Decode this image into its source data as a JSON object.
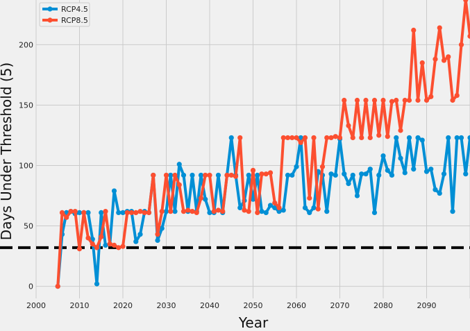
{
  "chart_data": {
    "type": "line",
    "title": "",
    "xlabel": "Year",
    "ylabel": "Days Under Threshold (5)",
    "xlim": [
      2000,
      2100
    ],
    "ylim": [
      -10,
      237
    ],
    "x_ticks": [
      2000,
      2010,
      2020,
      2030,
      2040,
      2050,
      2060,
      2070,
      2080,
      2090
    ],
    "y_ticks": [
      0,
      50,
      100,
      150,
      200
    ],
    "grid": true,
    "legend_position": "top-left",
    "threshold_line": 32,
    "colors": {
      "RCP4.5": "#008fd5",
      "RCP8.5": "#fc4f30",
      "threshold": "#000000"
    },
    "x": [
      2005,
      2006,
      2007,
      2008,
      2009,
      2010,
      2011,
      2012,
      2013,
      2014,
      2015,
      2016,
      2017,
      2018,
      2019,
      2020,
      2021,
      2022,
      2023,
      2024,
      2025,
      2026,
      2027,
      2028,
      2029,
      2030,
      2031,
      2032,
      2033,
      2034,
      2035,
      2036,
      2037,
      2038,
      2039,
      2040,
      2041,
      2042,
      2043,
      2044,
      2045,
      2046,
      2047,
      2048,
      2049,
      2050,
      2051,
      2052,
      2053,
      2054,
      2055,
      2056,
      2057,
      2058,
      2059,
      2060,
      2061,
      2062,
      2063,
      2064,
      2065,
      2066,
      2067,
      2068,
      2069,
      2070,
      2071,
      2072,
      2073,
      2074,
      2075,
      2076,
      2077,
      2078,
      2079,
      2080,
      2081,
      2082,
      2083,
      2084,
      2085,
      2086,
      2087,
      2088,
      2089,
      2090,
      2091,
      2092,
      2093,
      2094,
      2095,
      2096,
      2097,
      2098,
      2099,
      2100
    ],
    "series": [
      {
        "name": "RCP4.5",
        "values": [
          0,
          43,
          61,
          62,
          60,
          61,
          61,
          61,
          39,
          2,
          61,
          34,
          35,
          79,
          61,
          61,
          62,
          62,
          37,
          43,
          62,
          61,
          92,
          38,
          48,
          62,
          92,
          62,
          101,
          92,
          62,
          92,
          62,
          92,
          72,
          61,
          61,
          92,
          61,
          92,
          123,
          92,
          65,
          71,
          92,
          72,
          92,
          62,
          61,
          67,
          65,
          62,
          63,
          92,
          92,
          99,
          123,
          65,
          61,
          65,
          95,
          92,
          62,
          93,
          92,
          122,
          93,
          85,
          92,
          75,
          93,
          93,
          97,
          61,
          92,
          108,
          96,
          92,
          123,
          106,
          94,
          123,
          97,
          123,
          121,
          95,
          97,
          80,
          77,
          93,
          123,
          62,
          123,
          123,
          93,
          123
        ]
      },
      {
        "name": "RCP8.5",
        "values": [
          0,
          61,
          57,
          62,
          62,
          31,
          61,
          40,
          35,
          32,
          41,
          62,
          35,
          34,
          32,
          33,
          61,
          61,
          61,
          62,
          61,
          61,
          92,
          43,
          62,
          92,
          62,
          92,
          84,
          62,
          63,
          62,
          61,
          73,
          92,
          92,
          62,
          63,
          62,
          92,
          92,
          91,
          123,
          63,
          62,
          96,
          61,
          93,
          93,
          94,
          69,
          65,
          123,
          123,
          123,
          123,
          119,
          123,
          73,
          123,
          64,
          99,
          123,
          123,
          124,
          123,
          154,
          133,
          123,
          154,
          123,
          154,
          123,
          154,
          125,
          154,
          124,
          153,
          154,
          129,
          154,
          154,
          212,
          154,
          185,
          154,
          157,
          188,
          214,
          187,
          190,
          154,
          158,
          200,
          237,
          207
        ]
      }
    ]
  }
}
